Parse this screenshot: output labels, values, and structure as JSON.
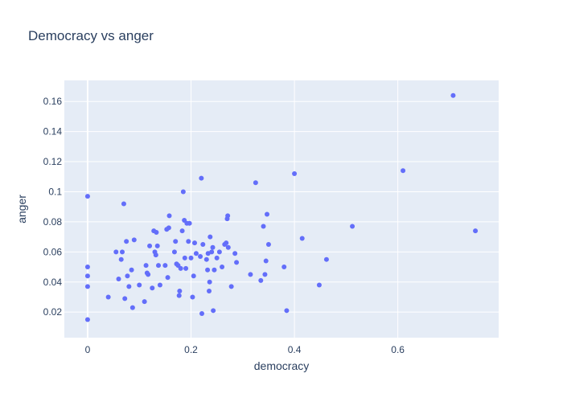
{
  "chart_data": {
    "type": "scatter",
    "title": "Democracy vs anger",
    "xlabel": "democracy",
    "ylabel": "anger",
    "xlim": [
      -0.045,
      0.795
    ],
    "ylim": [
      0.003,
      0.174
    ],
    "x_ticks": [
      0,
      0.2,
      0.4,
      0.6
    ],
    "x_tick_labels": [
      "0",
      "0.2",
      "0.4",
      "0.6"
    ],
    "y_ticks": [
      0.02,
      0.04,
      0.06,
      0.08,
      0.1,
      0.12,
      0.14,
      0.16
    ],
    "y_tick_labels": [
      "0.02",
      "0.04",
      "0.06",
      "0.08",
      "0.1",
      "0.12",
      "0.14",
      "0.16"
    ],
    "grid": true,
    "colors": {
      "marker": "#636efa",
      "plot_bg": "#e5ecf6",
      "grid": "#ffffff",
      "text": "#2a3f5f"
    },
    "points": [
      [
        0.0,
        0.097
      ],
      [
        0.0,
        0.05
      ],
      [
        0.0,
        0.044
      ],
      [
        0.0,
        0.037
      ],
      [
        0.0,
        0.015
      ],
      [
        0.04,
        0.03
      ],
      [
        0.055,
        0.06
      ],
      [
        0.06,
        0.042
      ],
      [
        0.065,
        0.055
      ],
      [
        0.067,
        0.06
      ],
      [
        0.07,
        0.092
      ],
      [
        0.072,
        0.029
      ],
      [
        0.075,
        0.067
      ],
      [
        0.077,
        0.044
      ],
      [
        0.08,
        0.037
      ],
      [
        0.085,
        0.048
      ],
      [
        0.087,
        0.023
      ],
      [
        0.09,
        0.068
      ],
      [
        0.1,
        0.038
      ],
      [
        0.11,
        0.027
      ],
      [
        0.113,
        0.051
      ],
      [
        0.115,
        0.046
      ],
      [
        0.117,
        0.045
      ],
      [
        0.12,
        0.064
      ],
      [
        0.125,
        0.036
      ],
      [
        0.128,
        0.074
      ],
      [
        0.13,
        0.06
      ],
      [
        0.132,
        0.058
      ],
      [
        0.133,
        0.073
      ],
      [
        0.135,
        0.064
      ],
      [
        0.137,
        0.051
      ],
      [
        0.14,
        0.038
      ],
      [
        0.15,
        0.051
      ],
      [
        0.153,
        0.075
      ],
      [
        0.155,
        0.043
      ],
      [
        0.157,
        0.076
      ],
      [
        0.158,
        0.084
      ],
      [
        0.168,
        0.06
      ],
      [
        0.17,
        0.067
      ],
      [
        0.172,
        0.052
      ],
      [
        0.175,
        0.051
      ],
      [
        0.177,
        0.031
      ],
      [
        0.178,
        0.034
      ],
      [
        0.18,
        0.049
      ],
      [
        0.183,
        0.074
      ],
      [
        0.185,
        0.1
      ],
      [
        0.187,
        0.081
      ],
      [
        0.188,
        0.056
      ],
      [
        0.19,
        0.049
      ],
      [
        0.192,
        0.079
      ],
      [
        0.195,
        0.067
      ],
      [
        0.197,
        0.079
      ],
      [
        0.2,
        0.056
      ],
      [
        0.203,
        0.03
      ],
      [
        0.205,
        0.044
      ],
      [
        0.207,
        0.066
      ],
      [
        0.21,
        0.059
      ],
      [
        0.218,
        0.057
      ],
      [
        0.22,
        0.109
      ],
      [
        0.221,
        0.019
      ],
      [
        0.223,
        0.065
      ],
      [
        0.23,
        0.055
      ],
      [
        0.232,
        0.048
      ],
      [
        0.233,
        0.059
      ],
      [
        0.235,
        0.034
      ],
      [
        0.236,
        0.04
      ],
      [
        0.237,
        0.07
      ],
      [
        0.24,
        0.06
      ],
      [
        0.242,
        0.063
      ],
      [
        0.243,
        0.021
      ],
      [
        0.245,
        0.048
      ],
      [
        0.25,
        0.056
      ],
      [
        0.255,
        0.06
      ],
      [
        0.26,
        0.05
      ],
      [
        0.265,
        0.065
      ],
      [
        0.268,
        0.066
      ],
      [
        0.27,
        0.082
      ],
      [
        0.271,
        0.084
      ],
      [
        0.272,
        0.063
      ],
      [
        0.278,
        0.037
      ],
      [
        0.285,
        0.059
      ],
      [
        0.288,
        0.053
      ],
      [
        0.315,
        0.045
      ],
      [
        0.325,
        0.106
      ],
      [
        0.335,
        0.041
      ],
      [
        0.34,
        0.077
      ],
      [
        0.343,
        0.045
      ],
      [
        0.345,
        0.054
      ],
      [
        0.347,
        0.085
      ],
      [
        0.35,
        0.065
      ],
      [
        0.38,
        0.05
      ],
      [
        0.385,
        0.021
      ],
      [
        0.4,
        0.112
      ],
      [
        0.415,
        0.069
      ],
      [
        0.448,
        0.038
      ],
      [
        0.462,
        0.055
      ],
      [
        0.512,
        0.077
      ],
      [
        0.61,
        0.114
      ],
      [
        0.707,
        0.164
      ],
      [
        0.75,
        0.074
      ]
    ]
  }
}
